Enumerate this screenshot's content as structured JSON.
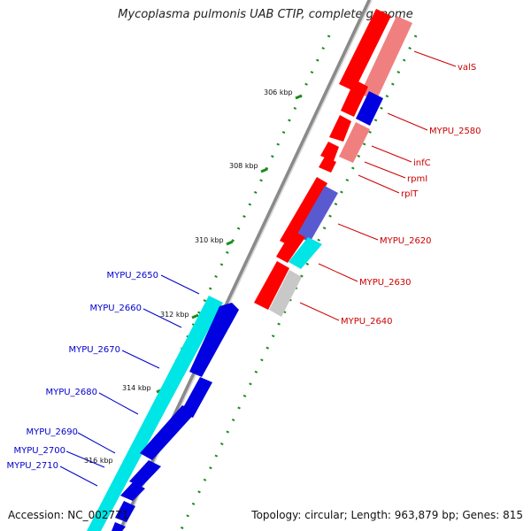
{
  "title": "Mycoplasma pulmonis UAB CTIP, complete genome",
  "footer": {
    "accession": "Accession: NC_002771",
    "summary": "Topology: circular; Length: 963,879 bp; Genes: 815"
  },
  "scale_labels": [
    "306 kbp",
    "308 kbp",
    "310 kbp",
    "312 kbp",
    "314 kbp",
    "316 kbp"
  ],
  "genes_right": [
    {
      "label": "valS"
    },
    {
      "label": "MYPU_2580"
    },
    {
      "label": "infC"
    },
    {
      "label": "rpmI"
    },
    {
      "label": "rplT"
    },
    {
      "label": "MYPU_2620"
    },
    {
      "label": "MYPU_2630"
    },
    {
      "label": "MYPU_2640"
    }
  ],
  "genes_left": [
    {
      "label": "MYPU_2650"
    },
    {
      "label": "MYPU_2660"
    },
    {
      "label": "MYPU_2670"
    },
    {
      "label": "MYPU_2680"
    },
    {
      "label": "MYPU_2690"
    },
    {
      "label": "MYPU_2700"
    },
    {
      "label": "MYPU_2710"
    }
  ],
  "colors": {
    "forward_cds": "#ff0000",
    "forward_light": "#f08080",
    "reverse_cds": "#0000e0",
    "reverse_light": "#00e5e5",
    "backbone": "#8a8a8a",
    "gc_dots": "#1a8c1a",
    "label_right": "#cc0000",
    "label_left": "#0000cc"
  }
}
